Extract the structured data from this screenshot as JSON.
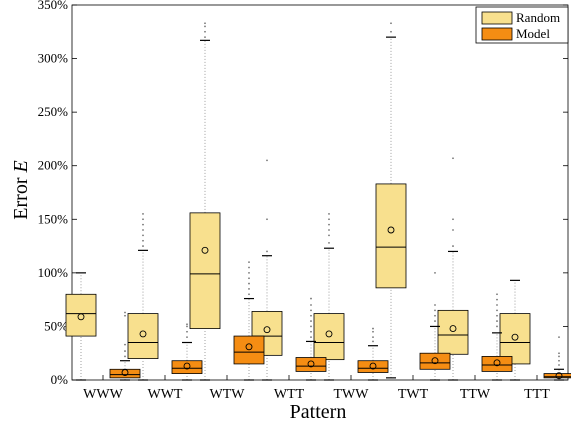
{
  "chart_data": {
    "type": "box",
    "xlabel": "Pattern",
    "ylabel_prefix": "Error ",
    "ylabel_var": "E",
    "ylim": [
      0,
      350
    ],
    "yticks": [
      0,
      50,
      100,
      150,
      200,
      250,
      300,
      350
    ],
    "ytick_labels": [
      "0%",
      "50%",
      "100%",
      "150%",
      "200%",
      "250%",
      "300%",
      "350%"
    ],
    "legend_position": "top-right",
    "grid": false,
    "categories": [
      "WWW",
      "WWT",
      "WTW",
      "WTT",
      "TWW",
      "TWT",
      "TTW",
      "TTT"
    ],
    "series": [
      {
        "name": "Random",
        "color": "#f8e08e",
        "boxes": [
          {
            "whislo": 0,
            "q1": 41,
            "med": 62,
            "q3": 80,
            "whishi": 100,
            "mean": 59,
            "outliers": []
          },
          {
            "whislo": 0,
            "q1": 20,
            "med": 35,
            "q3": 62,
            "whishi": 121,
            "mean": 43,
            "outliers": [
              125,
              130,
              135,
              140,
              145,
              150,
              155
            ]
          },
          {
            "whislo": 0,
            "q1": 48,
            "med": 99,
            "q3": 156,
            "whishi": 317,
            "mean": 121,
            "outliers": [
              320,
              325,
              330,
              333
            ]
          },
          {
            "whislo": 0,
            "q1": 23,
            "med": 41,
            "q3": 64,
            "whishi": 116,
            "mean": 47,
            "outliers": [
              120,
              150,
              205
            ]
          },
          {
            "whislo": 0,
            "q1": 19,
            "med": 35,
            "q3": 62,
            "whishi": 123,
            "mean": 43,
            "outliers": [
              128,
              135,
              140,
              145,
              150,
              155
            ]
          },
          {
            "whislo": 2,
            "q1": 86,
            "med": 124,
            "q3": 183,
            "whishi": 320,
            "mean": 140,
            "outliers": [
              325,
              333
            ]
          },
          {
            "whislo": 0,
            "q1": 24,
            "med": 42,
            "q3": 65,
            "whishi": 120,
            "mean": 48,
            "outliers": [
              125,
              140,
              150,
              207
            ]
          },
          {
            "whislo": 0,
            "q1": 15,
            "med": 35,
            "q3": 62,
            "whishi": 93,
            "mean": 40,
            "outliers": []
          }
        ]
      },
      {
        "name": "Model",
        "color": "#f58d13",
        "boxes": [
          {
            "whislo": 0,
            "q1": 2,
            "med": 5,
            "q3": 10,
            "whishi": 18,
            "mean": 7,
            "outliers": [
              22,
              27,
              33,
              60,
              63
            ]
          },
          {
            "whislo": 0,
            "q1": 6,
            "med": 11,
            "q3": 18,
            "whishi": 35,
            "mean": 13,
            "outliers": [
              40,
              45,
              50,
              52
            ]
          },
          {
            "whislo": 0,
            "q1": 15,
            "med": 26,
            "q3": 41,
            "whishi": 76,
            "mean": 31,
            "outliers": [
              80,
              85,
              90,
              95,
              100,
              105,
              110
            ]
          },
          {
            "whislo": 0,
            "q1": 8,
            "med": 13,
            "q3": 21,
            "whishi": 36,
            "mean": 15,
            "outliers": [
              40,
              45,
              50,
              55,
              60,
              65,
              70,
              76
            ]
          },
          {
            "whislo": 0,
            "q1": 7,
            "med": 11,
            "q3": 18,
            "whishi": 32,
            "mean": 13,
            "outliers": [
              36,
              40,
              45,
              48
            ]
          },
          {
            "whislo": 0,
            "q1": 10,
            "med": 16,
            "q3": 25,
            "whishi": 50,
            "mean": 18,
            "outliers": [
              55,
              60,
              65,
              70,
              100
            ]
          },
          {
            "whislo": 0,
            "q1": 8,
            "med": 14,
            "q3": 22,
            "whishi": 44,
            "mean": 16,
            "outliers": [
              50,
              55,
              60,
              65,
              70,
              75,
              80
            ]
          },
          {
            "whislo": 0,
            "q1": 2,
            "med": 3,
            "q3": 6,
            "whishi": 10,
            "mean": 4,
            "outliers": [
              14,
              18,
              22,
              25,
              40
            ]
          }
        ]
      }
    ]
  }
}
